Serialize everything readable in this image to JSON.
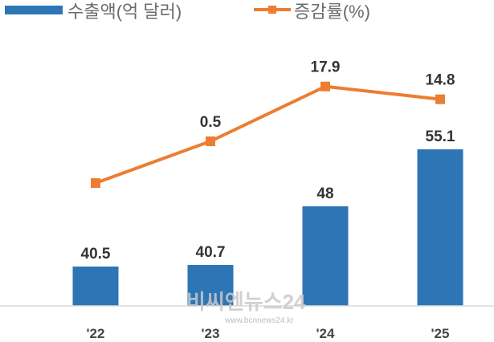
{
  "chart_data": {
    "type": "bar",
    "categories": [
      "'22",
      "'23",
      "'24",
      "'25"
    ],
    "series": [
      {
        "name": "수출액(억 달러)",
        "type": "bar",
        "color": "#2e75b6",
        "values": [
          40.5,
          40.7,
          48,
          55.1
        ],
        "labels": [
          "40.5",
          "40.7",
          "48",
          "55.1"
        ]
      },
      {
        "name": "증감률(%)",
        "type": "line",
        "color": "#ed7d31",
        "values": [
          null,
          0.5,
          17.9,
          14.8
        ],
        "labels": [
          "",
          "0.5",
          "17.9",
          "14.8"
        ]
      }
    ],
    "legend": "top-left",
    "grid": false
  },
  "watermark": {
    "main": "비씨엔뉴스24",
    "sub": "www.bcnnews24.kr"
  }
}
